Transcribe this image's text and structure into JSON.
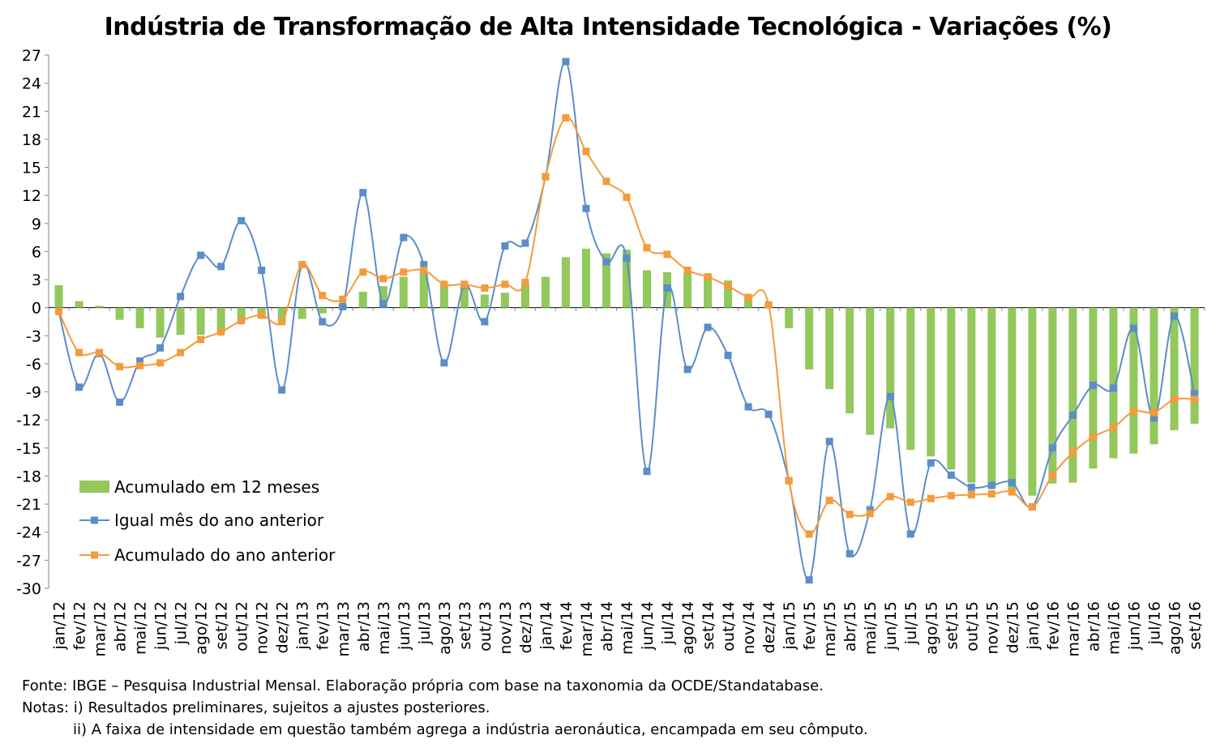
{
  "chart_data": {
    "type": "bar+line",
    "title": "Indústria de Transformação de Alta Intensidade Tecnológica - Variações (%)",
    "xlabel": "",
    "ylabel": "",
    "ylim": [
      -30,
      27
    ],
    "yticks": [
      27,
      24,
      21,
      18,
      15,
      12,
      9,
      6,
      3,
      0,
      -3,
      -6,
      -9,
      -12,
      -15,
      -18,
      -21,
      -24,
      -27,
      -30
    ],
    "grid": false,
    "legend_position": "bottom-left",
    "categories": [
      "jan/12",
      "fev/12",
      "mar/12",
      "abr/12",
      "mai/12",
      "jun/12",
      "jul/12",
      "ago/12",
      "set/12",
      "out/12",
      "nov/12",
      "dez/12",
      "jan/13",
      "fev/13",
      "mar/13",
      "abr/13",
      "mai/13",
      "jun/13",
      "jul/13",
      "ago/13",
      "set/13",
      "out/13",
      "nov/13",
      "dez/13",
      "jan/14",
      "fev/14",
      "mar/14",
      "abr/14",
      "mai/14",
      "jun/14",
      "jul/14",
      "ago/14",
      "set/14",
      "out/14",
      "nov/14",
      "dez/14",
      "jan/15",
      "fev/15",
      "mar/15",
      "abr/15",
      "mai/15",
      "jun/15",
      "jul/15",
      "ago/15",
      "set/15",
      "out/15",
      "nov/15",
      "dez/15",
      "jan/16",
      "fev/16",
      "mar/16",
      "abr/16",
      "mai/16",
      "jun/16",
      "jul/16",
      "ago/16",
      "set/16"
    ],
    "series": [
      {
        "name": "Acumulado em 12 meses",
        "kind": "bar",
        "color": "#92C85C",
        "values": [
          2.4,
          0.7,
          0.2,
          -1.3,
          -2.2,
          -3.2,
          -2.9,
          -2.9,
          -2.7,
          -1.5,
          -1.2,
          -1.5,
          -1.2,
          -0.6,
          0.4,
          1.7,
          2.3,
          3.3,
          3.9,
          2.5,
          2.3,
          1.4,
          1.6,
          2.6,
          3.3,
          5.4,
          6.3,
          5.8,
          6.2,
          4.0,
          3.8,
          3.7,
          3.5,
          2.9,
          1.3,
          0.3,
          -2.2,
          -6.6,
          -8.7,
          -11.3,
          -13.6,
          -12.9,
          -15.2,
          -15.9,
          -17.3,
          -18.7,
          -19.2,
          -19.6,
          -20.1,
          -18.8,
          -18.7,
          -17.2,
          -16.1,
          -15.6,
          -14.6,
          -13.1,
          -12.4
        ]
      },
      {
        "name": "Igual mês do ano anterior",
        "kind": "line",
        "color": "#5B8DC8",
        "values": [
          -0.4,
          -8.5,
          -4.9,
          -10.1,
          -5.7,
          -4.3,
          1.2,
          5.6,
          4.4,
          9.3,
          4.0,
          -8.8,
          4.6,
          -1.5,
          0.1,
          12.3,
          0.4,
          7.5,
          4.6,
          -5.9,
          2.4,
          -1.5,
          6.6,
          6.9,
          14.0,
          26.3,
          10.6,
          4.9,
          5.3,
          -17.5,
          2.1,
          -6.6,
          -2.1,
          -5.1,
          -10.6,
          -11.4,
          -18.5,
          -29.1,
          -14.3,
          -26.3,
          -21.6,
          -9.5,
          -24.2,
          -16.6,
          -17.9,
          -19.2,
          -19.0,
          -18.7,
          -21.3,
          -15.0,
          -11.5,
          -8.3,
          -8.6,
          -2.2,
          -11.8,
          -0.9,
          -9.2
        ]
      },
      {
        "name": "Acumulado do ano anterior",
        "kind": "line",
        "color": "#F49B3C",
        "values": [
          -0.4,
          -4.8,
          -4.8,
          -6.3,
          -6.2,
          -5.9,
          -4.8,
          -3.4,
          -2.6,
          -1.4,
          -0.8,
          -1.5,
          4.6,
          1.3,
          0.9,
          3.8,
          3.1,
          3.8,
          4.0,
          2.5,
          2.5,
          2.1,
          2.5,
          2.7,
          14.0,
          20.3,
          16.7,
          13.5,
          11.8,
          6.4,
          5.7,
          4.0,
          3.3,
          2.3,
          1.1,
          0.3,
          -18.5,
          -24.2,
          -20.6,
          -22.1,
          -22.0,
          -20.2,
          -20.8,
          -20.4,
          -20.1,
          -20.0,
          -19.9,
          -19.7,
          -21.3,
          -17.9,
          -15.5,
          -13.8,
          -12.8,
          -11.1,
          -11.2,
          -9.8,
          -9.8
        ]
      }
    ]
  },
  "notes": {
    "source": "Fonte: IBGE – Pesquisa Industrial Mensal. Elaboração própria com base na taxonomia da OCDE/Standatabase.",
    "note1": "Notas: i) Resultados preliminares, sujeitos a ajustes posteriores.",
    "note2": "ii) A faixa de intensidade em questão também agrega a indústria aeronáutica, encampada em seu cômputo."
  }
}
